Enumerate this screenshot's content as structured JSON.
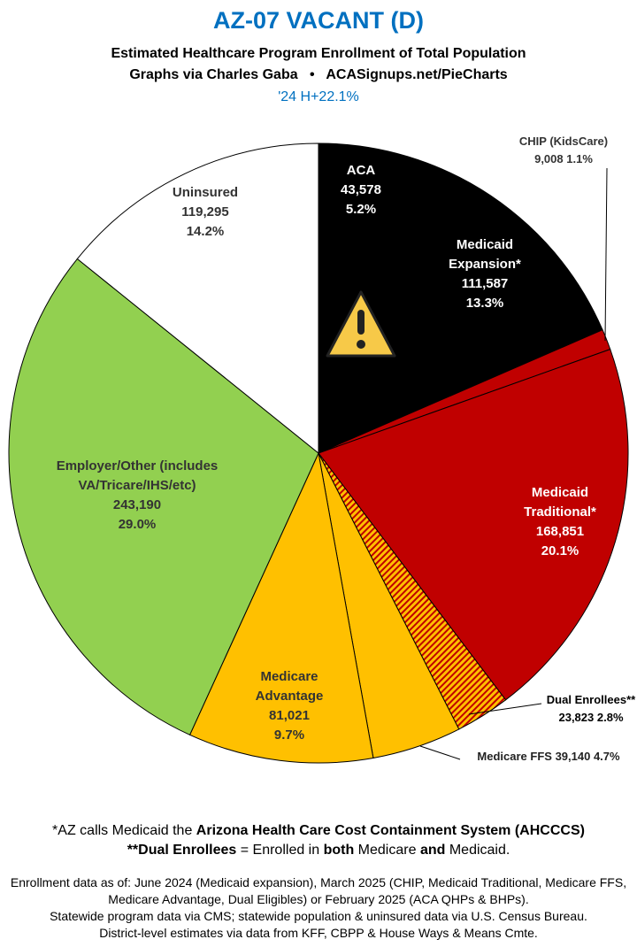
{
  "chart_data": {
    "type": "pie",
    "title": "AZ-07 VACANT (D)",
    "subtitle": [
      "Estimated Healthcare Program Enrollment of Total Population",
      "Graphs via Charles Gaba",
      "•",
      "ACASignups.net/PieCharts"
    ],
    "annotation": "'24 H+22.1%",
    "categories": [
      "ACA",
      "Medicaid Expansion*",
      "CHIP (KidsCare)",
      "Medicaid Traditional*",
      "Dual Enrollees**",
      "Medicare FFS",
      "Medicare Advantage",
      "Employer/Other (includes VA/Tricare/IHS/etc)",
      "Uninsured"
    ],
    "values": [
      43578,
      111587,
      9008,
      168851,
      23823,
      39140,
      81021,
      243190,
      119295
    ],
    "value_labels": [
      "43,578",
      "111,587",
      "9,008",
      "168,851",
      "23,823",
      "39,140",
      "81,021",
      "243,190",
      "119,295"
    ],
    "percent_labels": [
      "5.2%",
      "13.3%",
      "1.1%",
      "20.1%",
      "2.8%",
      "4.7%",
      "9.7%",
      "29.0%",
      "14.2%"
    ],
    "colors": [
      "#000000",
      "#000000",
      "#c00000",
      "#c00000",
      "#ffc000",
      "#ffc000",
      "#ffc000",
      "#92d050",
      "#ffffff"
    ],
    "patterns": [
      "solid",
      "solid",
      "solid",
      "solid",
      "hatch",
      "solid",
      "solid",
      "solid",
      "solid"
    ]
  },
  "notes": [
    [
      "*AZ calls Medicaid the ",
      "Arizona Health Care Cost Containment System (AHCCCS)"
    ],
    [
      "",
      "**Dual Enrollees",
      " = Enrolled in ",
      "both",
      " Medicare ",
      "and",
      " Medicaid."
    ]
  ],
  "sources": [
    "Enrollment data as of: June 2024 (Medicaid expansion), March 2025 (CHIP, Medicaid Traditional, Medicare FFS, Medicare Advantage, Dual Eligibles) or February 2025 (ACA QHPs & BHPs).",
    "Statewide program data via CMS; statewide population & uninsured data via U.S. Census Bureau.",
    "District-level estimates via data from KFF, CBPP & House Ways & Means Cmte."
  ]
}
